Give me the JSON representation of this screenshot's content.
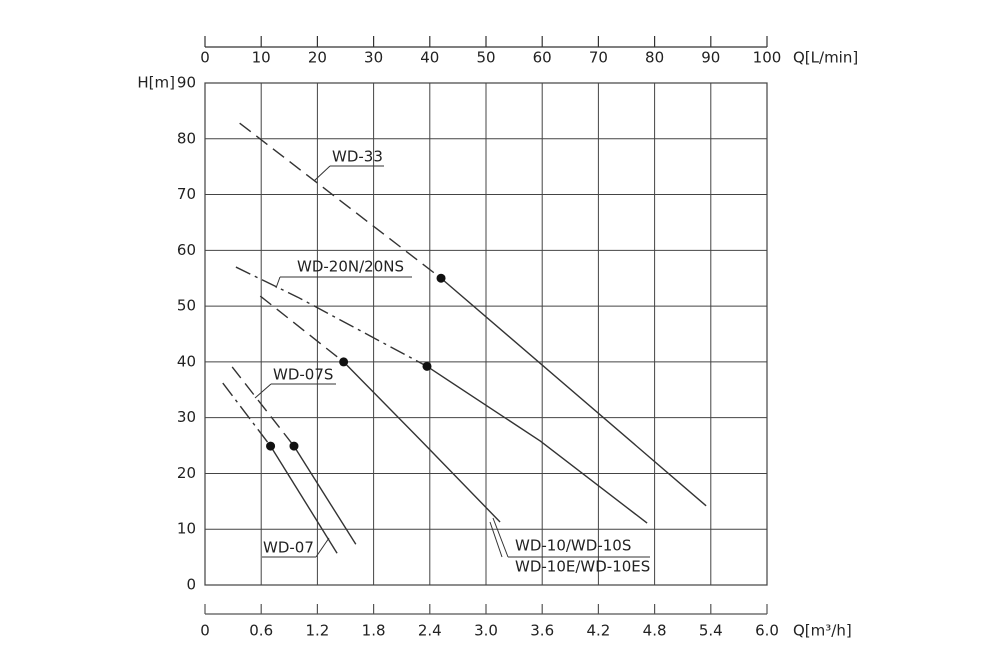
{
  "chart_data": {
    "type": "line",
    "y_label": "H[m]",
    "x_label": "Q[m³/h]",
    "x2_label": "Q[L/min]",
    "ylim": [
      0,
      90
    ],
    "yticks": [
      0,
      10,
      20,
      30,
      40,
      50,
      60,
      70,
      80,
      90
    ],
    "xlim": [
      0,
      6
    ],
    "xticks": [
      0,
      0.6,
      1.2,
      1.8,
      2.4,
      {
        "value": 3,
        "label": "3.0"
      },
      3.6,
      4.2,
      4.8,
      5.4,
      {
        "value": 6,
        "label": "6.0"
      }
    ],
    "x2lim": [
      0,
      100
    ],
    "x2ticks": [
      0,
      10,
      20,
      30,
      40,
      50,
      60,
      70,
      80,
      90,
      100
    ],
    "grid": true,
    "color": "#333333",
    "series": [
      {
        "labels": [
          "WD-33"
        ],
        "segments": [
          {
            "style": "dashed",
            "x": [
              0.37,
              2.52
            ],
            "values": [
              82.8,
              55
            ]
          },
          {
            "style": "solid",
            "x": [
              2.52,
              5.35
            ],
            "values": [
              55,
              14.2
            ]
          }
        ],
        "marker": {
          "x": 2.52,
          "value": 55
        }
      },
      {
        "labels": [
          "WD-20N/20NS"
        ],
        "segments": [
          {
            "style": "dashdot",
            "x": [
              0.33,
              0.99,
              2.37
            ],
            "values": [
              57,
              51.6,
              39.2
            ]
          },
          {
            "style": "solid",
            "x": [
              2.37,
              3.58,
              4.72
            ],
            "values": [
              39.2,
              25.8,
              11.1
            ]
          }
        ],
        "marker": {
          "x": 2.37,
          "value": 39.2
        }
      },
      {
        "labels": [
          "WD-10/WD-10S",
          "WD-10E/WD-10ES"
        ],
        "segments": [
          {
            "style": "dashed",
            "x": [
              0.59,
              1.48
            ],
            "values": [
              51.8,
              40
            ]
          },
          {
            "style": "solid",
            "x": [
              1.48,
              2.3,
              3.15
            ],
            "values": [
              40,
              26,
              11.3
            ]
          }
        ],
        "marker": {
          "x": 1.48,
          "value": 40
        }
      },
      {
        "labels": [
          "WD-07S"
        ],
        "segments": [
          {
            "style": "dashed",
            "x": [
              0.29,
              0.95
            ],
            "values": [
              39.1,
              24.9
            ]
          },
          {
            "style": "solid",
            "x": [
              0.95,
              1.61
            ],
            "values": [
              24.9,
              7.3
            ]
          }
        ],
        "marker": {
          "x": 0.95,
          "value": 24.9
        }
      },
      {
        "labels": [
          "WD-07"
        ],
        "segments": [
          {
            "style": "dashdot",
            "x": [
              0.19,
              0.7
            ],
            "values": [
              36.2,
              24.9
            ]
          },
          {
            "style": "solid",
            "x": [
              0.7,
              1.41
            ],
            "values": [
              24.9,
              5.7
            ]
          }
        ],
        "marker": {
          "x": 0.7,
          "value": 24.9
        }
      }
    ]
  }
}
